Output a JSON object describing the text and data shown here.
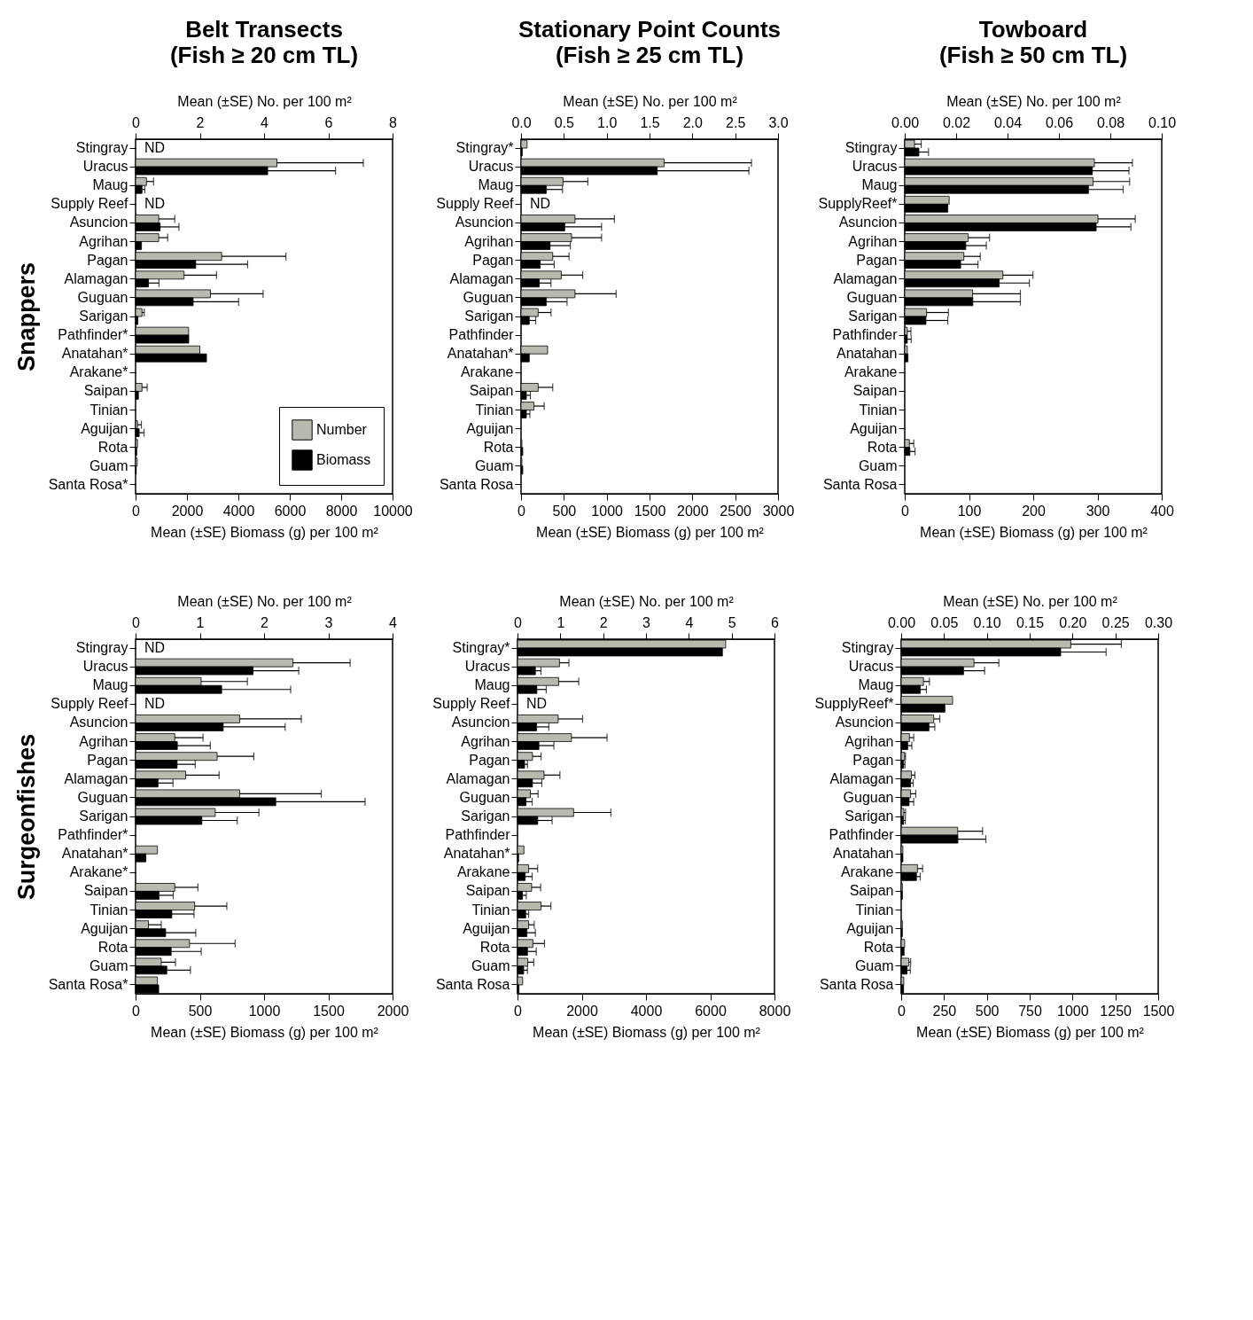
{
  "chart_data": [
    {
      "type": "bar",
      "orientation": "horizontal",
      "title": "Belt Transects",
      "subtitle": "(Fish ≥ 20 cm TL)",
      "ylabel": "Snappers",
      "xlabel": "Mean (±SE) Biomass (g) per 100 m²",
      "x2label": "Mean (±SE) No. per 100 m²",
      "legend": "bottom right",
      "categories": [
        "Stingray",
        "Uracus",
        "Maug",
        "Supply Reef",
        "Asuncion",
        "Agrihan",
        "Pagan",
        "Alamagan",
        "Guguan",
        "Sarigan",
        "Pathfinder*",
        "Anatahan*",
        "Arakane*",
        "Saipan",
        "Tinian",
        "Aguijan",
        "Rota",
        "Guam",
        "Santa Rosa*"
      ],
      "xlim": [
        0,
        10000
      ],
      "xticks": [
        0,
        2000,
        4000,
        6000,
        8000,
        10000
      ],
      "x2lim": [
        0,
        8
      ],
      "x2ticks": [
        0,
        2,
        4,
        6,
        8
      ],
      "series": [
        {
          "name": "Number",
          "color": "#b9b9b0",
          "axis": "x2",
          "values": [
            null,
            4.4,
            0.34,
            null,
            0.72,
            0.72,
            2.68,
            1.51,
            2.33,
            0.2,
            1.65,
            2.0,
            0,
            0.2,
            0,
            0.06,
            0.06,
            0.05,
            0
          ],
          "errors": [
            null,
            2.69,
            0.22,
            null,
            0.5,
            0.28,
            2.0,
            1.01,
            1.64,
            0.07,
            null,
            null,
            null,
            0.16,
            null,
            0.12,
            null,
            null,
            null
          ]
        },
        {
          "name": "Biomass",
          "color": "#000000",
          "values": [
            null,
            5140,
            250,
            null,
            955,
            230,
            2340,
            500,
            2240,
            90,
            2070,
            2760,
            0,
            110,
            0,
            140,
            45,
            25,
            0
          ],
          "errors": [
            null,
            2640,
            110,
            null,
            735,
            null,
            2020,
            410,
            1770,
            null,
            null,
            null,
            null,
            null,
            null,
            190,
            null,
            null,
            null
          ]
        }
      ],
      "annotations": [
        "ND",
        "ND"
      ]
    },
    {
      "type": "bar",
      "orientation": "horizontal",
      "title": "Stationary Point Counts",
      "subtitle": "(Fish ≥ 25 cm TL)",
      "xlabel": "Mean (±SE) Biomass (g) per 100 m²",
      "x2label": "Mean (±SE) No. per 100 m²",
      "categories": [
        "Stingray*",
        "Uracus",
        "Maug",
        "Supply Reef",
        "Asuncion",
        "Agrihan",
        "Pagan",
        "Alamagan",
        "Guguan",
        "Sarigan",
        "Pathfinder",
        "Anatahan*",
        "Arakane",
        "Saipan",
        "Tinian",
        "Aguijan",
        "Rota",
        "Guam",
        "Santa Rosa"
      ],
      "xlim": [
        0,
        3000
      ],
      "xticks": [
        0,
        500,
        1000,
        1500,
        2000,
        2500,
        3000
      ],
      "x2lim": [
        0,
        3
      ],
      "x2ticks": [
        {
          "value": 0,
          "label": "0.0"
        },
        0.5,
        {
          "value": 1,
          "label": "1.0"
        },
        1.5,
        {
          "value": 2,
          "label": "2.0"
        },
        2.5,
        {
          "value": 3,
          "label": "3.0"
        }
      ],
      "series": [
        {
          "name": "Number",
          "color": "#b9b9b0",
          "axis": "x2",
          "values": [
            0.07,
            1.67,
            0.49,
            null,
            0.63,
            0.59,
            0.37,
            0.47,
            0.63,
            0.2,
            0,
            0.31,
            0,
            0.2,
            0.15,
            0,
            0.01,
            0.01,
            0
          ],
          "errors": [
            null,
            1.02,
            0.29,
            null,
            0.46,
            0.35,
            0.19,
            0.25,
            0.48,
            0.15,
            null,
            null,
            null,
            0.17,
            0.12,
            null,
            null,
            null,
            null
          ]
        },
        {
          "name": "Biomass",
          "color": "#000000",
          "values": [
            14,
            1590,
            294,
            null,
            510,
            339,
            223,
            212,
            294,
            96,
            0,
            96,
            0,
            62,
            62,
            0,
            20,
            20,
            0
          ],
          "errors": [
            null,
            1070,
            190,
            null,
            430,
            236,
            164,
            137,
            243,
            75,
            null,
            null,
            null,
            47,
            41,
            null,
            null,
            null,
            null
          ]
        }
      ],
      "annotations": [
        "ND"
      ]
    },
    {
      "type": "bar",
      "orientation": "horizontal",
      "title": "Towboard",
      "subtitle": "(Fish ≥ 50 cm TL)",
      "xlabel": "Mean (±SE) Biomass (g) per 100 m²",
      "x2label": "Mean (±SE) No. per 100 m²",
      "categories": [
        "Stingray",
        "Uracus",
        "Maug",
        "SupplyReef*",
        "Asuncion",
        "Agrihan",
        "Pagan",
        "Alamagan",
        "Guguan",
        "Sarigan",
        "Pathfinder",
        "Anatahan",
        "Arakane",
        "Saipan",
        "Tinian",
        "Aguijan",
        "Rota",
        "Guam",
        "Santa Rosa"
      ],
      "xlim": [
        0,
        400
      ],
      "xticks": [
        0,
        100,
        200,
        300,
        400
      ],
      "x2lim": [
        0,
        0.1
      ],
      "x2ticks": [
        {
          "value": 0,
          "label": "0.00"
        },
        0.02,
        0.04,
        0.06,
        0.08,
        {
          "value": 0.1,
          "label": "0.10"
        }
      ],
      "series": [
        {
          "name": "Number",
          "color": "#b9b9b0",
          "axis": "x2",
          "values": [
            0.0038,
            0.0738,
            0.0733,
            0.0173,
            0.0752,
            0.0247,
            0.023,
            0.0382,
            0.0264,
            0.0085,
            0.001,
            0.001,
            0,
            0,
            0,
            0,
            0.0018,
            0,
            0
          ],
          "errors": [
            0.0026,
            0.0148,
            0.0142,
            null,
            0.0145,
            0.0083,
            0.0064,
            0.0117,
            0.0186,
            0.0085,
            0.0014,
            null,
            null,
            null,
            null,
            null,
            0.0017,
            null,
            null
          ]
        },
        {
          "name": "Biomass",
          "color": "#000000",
          "values": [
            22,
            292,
            286,
            67,
            298,
            95,
            87,
            147,
            106,
            33,
            4,
            5,
            0,
            0,
            0,
            0,
            8,
            0,
            0
          ],
          "errors": [
            15,
            57,
            54,
            null,
            54,
            32,
            27,
            47,
            74,
            34,
            6,
            null,
            null,
            null,
            null,
            null,
            8,
            null,
            null
          ]
        }
      ]
    },
    {
      "type": "bar",
      "orientation": "horizontal",
      "ylabel": "Surgeonfishes",
      "xlabel": "Mean (±SE) Biomass (g) per 100 m²",
      "x2label": "Mean (±SE) No. per 100 m²",
      "categories": [
        "Stingray",
        "Uracus",
        "Maug",
        "Supply Reef",
        "Asuncion",
        "Agrihan",
        "Pagan",
        "Alamagan",
        "Guguan",
        "Sarigan",
        "Pathfinder*",
        "Anatahan*",
        "Arakane*",
        "Saipan",
        "Tinian",
        "Aguijan",
        "Rota",
        "Guam",
        "Santa Rosa*"
      ],
      "xlim": [
        0,
        2000
      ],
      "xticks": [
        0,
        500,
        1000,
        1500,
        2000
      ],
      "x2lim": [
        0,
        4
      ],
      "x2ticks": [
        0,
        1,
        2,
        3,
        4
      ],
      "series": [
        {
          "name": "Number",
          "color": "#b9b9b0",
          "axis": "x2",
          "values": [
            null,
            2.45,
            1.02,
            null,
            1.62,
            0.61,
            1.27,
            0.78,
            1.62,
            1.24,
            0,
            0.34,
            0,
            0.61,
            0.92,
            0.2,
            0.84,
            0.4,
            0.34
          ],
          "errors": [
            null,
            0.89,
            0.72,
            null,
            0.96,
            0.44,
            0.57,
            0.52,
            1.27,
            0.68,
            null,
            null,
            null,
            0.36,
            0.5,
            0.2,
            0.71,
            0.22,
            null
          ]
        },
        {
          "name": "Biomass",
          "color": "#000000",
          "values": [
            null,
            914,
            670,
            null,
            682,
            325,
            323,
            175,
            1091,
            516,
            0,
            80,
            0,
            182,
            282,
            234,
            277,
            243,
            180
          ],
          "errors": [
            null,
            356,
            537,
            null,
            482,
            257,
            141,
            116,
            695,
            275,
            null,
            null,
            null,
            111,
            173,
            234,
            234,
            184,
            null
          ]
        }
      ],
      "annotations": [
        "ND",
        "ND"
      ]
    },
    {
      "type": "bar",
      "orientation": "horizontal",
      "xlabel": "Mean (±SE) Biomass (g) per 100 m²",
      "x2label": "Mean (±SE) No. per 100 m²",
      "categories": [
        "Stingray*",
        "Uracus",
        "Maug",
        "Supply Reef",
        "Asuncion",
        "Agrihan",
        "Pagan",
        "Alamagan",
        "Guguan",
        "Sarigan",
        "Pathfinder",
        "Anatahan*",
        "Arakane",
        "Saipan",
        "Tinian",
        "Aguijan",
        "Rota",
        "Guam",
        "Santa Rosa"
      ],
      "xlim": [
        0,
        8000
      ],
      "xticks": [
        0,
        2000,
        4000,
        6000,
        8000
      ],
      "x2lim": [
        0,
        6
      ],
      "x2ticks": [
        0,
        1,
        2,
        3,
        4,
        5,
        6
      ],
      "series": [
        {
          "name": "Number",
          "color": "#b9b9b0",
          "axis": "x2",
          "values": [
            4.86,
            0.98,
            0.96,
            null,
            0.95,
            1.26,
            0.35,
            0.62,
            0.3,
            1.31,
            0,
            0.15,
            0.26,
            0.33,
            0.55,
            0.26,
            0.36,
            0.24,
            0.12
          ],
          "errors": [
            null,
            0.22,
            0.47,
            null,
            0.57,
            0.83,
            0.2,
            0.37,
            0.18,
            0.87,
            null,
            null,
            0.21,
            0.21,
            0.23,
            0.13,
            0.27,
            0.14,
            null
          ]
        },
        {
          "name": "Biomass",
          "color": "#000000",
          "values": [
            6380,
            557,
            602,
            null,
            593,
            666,
            219,
            465,
            265,
            630,
            0,
            36,
            237,
            155,
            255,
            292,
            310,
            192,
            46
          ],
          "errors": [
            null,
            173,
            292,
            null,
            383,
            465,
            91,
            292,
            191,
            447,
            null,
            null,
            219,
            119,
            92,
            265,
            274,
            118,
            null
          ]
        }
      ],
      "annotations": [
        "ND"
      ]
    },
    {
      "type": "bar",
      "orientation": "horizontal",
      "xlabel": "Mean (±SE) Biomass (g) per 100 m²",
      "x2label": "Mean (±SE) No. per 100 m²",
      "categories": [
        "Stingray",
        "Uracus",
        "Maug",
        "SupplyReef*",
        "Asuncion",
        "Agrihan",
        "Pagan",
        "Alamagan",
        "Guguan",
        "Sarigan",
        "Pathfinder",
        "Anatahan",
        "Arakane",
        "Saipan",
        "Tinian",
        "Aguijan",
        "Rota",
        "Guam",
        "Santa Rosa"
      ],
      "xlim": [
        0,
        1500
      ],
      "xticks": [
        0,
        250,
        500,
        750,
        1000,
        1250,
        1500
      ],
      "x2lim": [
        0,
        0.3
      ],
      "x2ticks": [
        {
          "value": 0,
          "label": "0.00"
        },
        0.05,
        {
          "value": 0.1,
          "label": "0.10"
        },
        0.15,
        {
          "value": 0.2,
          "label": "0.20"
        },
        0.25,
        {
          "value": 0.3,
          "label": "0.30"
        }
      ],
      "series": [
        {
          "name": "Number",
          "color": "#b9b9b0",
          "axis": "x2",
          "values": [
            0.198,
            0.085,
            0.026,
            0.06,
            0.038,
            0.0096,
            0.004,
            0.012,
            0.011,
            0.003,
            0.066,
            0.002,
            0.019,
            0.0014,
            0,
            0.0014,
            0.004,
            0.009,
            0.003
          ],
          "errors": [
            0.059,
            0.029,
            0.007,
            null,
            0.007,
            0.005,
            0.001,
            0.004,
            0.006,
            0.002,
            0.029,
            null,
            0.006,
            null,
            null,
            null,
            null,
            0.002,
            null
          ]
        },
        {
          "name": "Biomass",
          "color": "#000000",
          "values": [
            931,
            364,
            111,
            255,
            162,
            38,
            14,
            55,
            46,
            14,
            331,
            10,
            89,
            7,
            0,
            7,
            17,
            34,
            14
          ],
          "errors": [
            265,
            123,
            36,
            null,
            34,
            24,
            8,
            15,
            27,
            10,
            163,
            null,
            22,
            null,
            null,
            null,
            null,
            19,
            null
          ]
        }
      ]
    }
  ]
}
